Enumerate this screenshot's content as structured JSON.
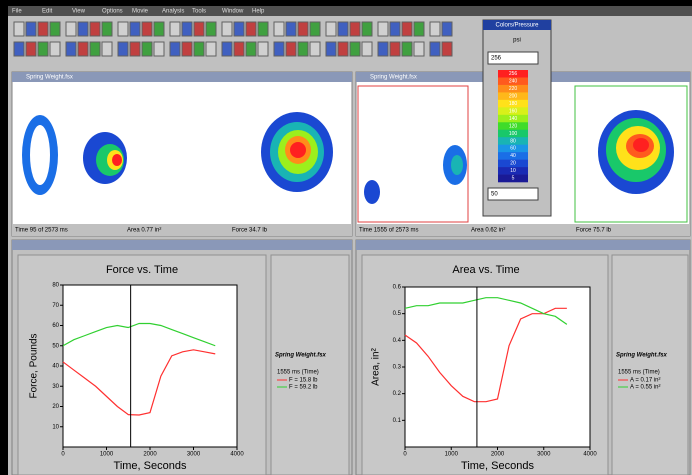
{
  "app": {
    "menu": [
      "File",
      "Edit",
      "View",
      "Options",
      "Movie",
      "Analysis",
      "Tools",
      "Window",
      "Help"
    ],
    "pressure_windows": [
      {
        "title": "Spring Weight.fsx",
        "status": [
          "Time 95 of 2573 ms",
          "Area 0.77 in²",
          "Force 34.7 lb"
        ]
      },
      {
        "title": "Spring Weight.fsx",
        "status": [
          "Time 1555 of 2573 ms",
          "Area 0.62 in²",
          "Force 75.7 lb"
        ]
      }
    ],
    "colors_popup": {
      "title": "Colors/Pressure",
      "unit": "psi",
      "top": "256",
      "bottom": "50",
      "labels": [
        "256",
        "240",
        "220",
        "200",
        "180",
        "160",
        "140",
        "120",
        "100",
        "80",
        "60",
        "40",
        "20",
        "10",
        "5"
      ],
      "colors": [
        "#ff2020",
        "#ff5a1e",
        "#ff8c1a",
        "#ffb81a",
        "#ffe11a",
        "#d8f01a",
        "#9cef1c",
        "#3fdc2a",
        "#19c86a",
        "#19b4b4",
        "#1a96e6",
        "#1a6ee6",
        "#1a48d2",
        "#1a2ab4",
        "#1a1a96"
      ]
    },
    "chart_windows": [
      {
        "legend_title": "Spring Weight.fsx",
        "cursor_label": "1555 ms (Time)"
      },
      {
        "legend_title": "Spring Weight.fsx",
        "cursor_label": "1555 ms (Time)"
      }
    ]
  },
  "chart_data": [
    {
      "type": "line",
      "title": "Force vs. Time",
      "x_label": "Time, Seconds",
      "y_label": "Force, Pounds",
      "x": [
        0,
        250,
        500,
        750,
        1000,
        1250,
        1500,
        1750,
        2000,
        2250,
        2500,
        2750,
        3000,
        3250,
        3500
      ],
      "xlim": [
        0,
        4000
      ],
      "xticks": [
        0,
        1000,
        2000,
        3000,
        4000
      ],
      "ylim": [
        0,
        80
      ],
      "yticks": [
        10,
        20,
        30,
        40,
        50,
        60,
        70,
        80
      ],
      "cursor_x": 1555,
      "series": [
        {
          "name": "F = 15.8 lb",
          "color": "#ff3030",
          "values": [
            42,
            38,
            34,
            30,
            25,
            20,
            16,
            15.8,
            17,
            35,
            45,
            47,
            48,
            47,
            46
          ]
        },
        {
          "name": "F = 59.2 lb",
          "color": "#30d030",
          "values": [
            50,
            53,
            55,
            57,
            59,
            60,
            59,
            61,
            61,
            60,
            58,
            56,
            54,
            52,
            50
          ]
        }
      ]
    },
    {
      "type": "line",
      "title": "Area vs. Time",
      "x_label": "Time, Seconds",
      "y_label": "Area, in²",
      "x": [
        0,
        250,
        500,
        750,
        1000,
        1250,
        1500,
        1750,
        2000,
        2250,
        2500,
        2750,
        3000,
        3250,
        3500
      ],
      "xlim": [
        0,
        4000
      ],
      "xticks": [
        0,
        1000,
        2000,
        3000,
        4000
      ],
      "ylim": [
        0,
        0.6
      ],
      "yticks": [
        0.1,
        0.2,
        0.3,
        0.4,
        0.5,
        0.6
      ],
      "cursor_x": 1555,
      "series": [
        {
          "name": "A = 0.17 in²",
          "color": "#ff3030",
          "values": [
            0.42,
            0.39,
            0.34,
            0.28,
            0.23,
            0.19,
            0.17,
            0.17,
            0.18,
            0.38,
            0.48,
            0.5,
            0.5,
            0.52,
            0.52
          ]
        },
        {
          "name": "A = 0.55 in²",
          "color": "#30d030",
          "values": [
            0.52,
            0.53,
            0.53,
            0.54,
            0.54,
            0.54,
            0.55,
            0.56,
            0.56,
            0.55,
            0.54,
            0.52,
            0.5,
            0.49,
            0.46
          ]
        }
      ]
    }
  ]
}
